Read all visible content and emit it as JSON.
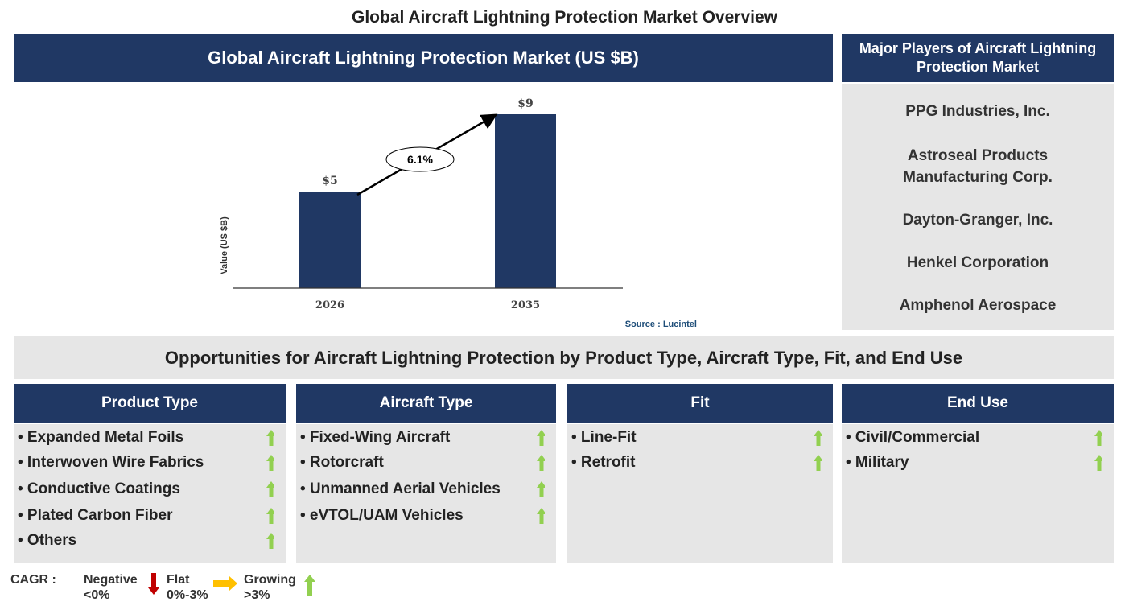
{
  "title": "Global Aircraft Lightning Protection Market Overview",
  "chart_panel": {
    "header": "Global Aircraft Lightning Protection Market (US $B)",
    "source": "Source : Lucintel"
  },
  "chart_data": {
    "type": "bar",
    "title": "Global Aircraft Lightning Protection Market (US $B)",
    "categories": [
      "2026",
      "2035"
    ],
    "values": [
      5,
      9
    ],
    "data_labels": [
      "$5",
      "$9"
    ],
    "ylabel": "Value (US $B)",
    "xlabel": "",
    "cagr_annotation": "6.1%",
    "bar_color": "#203864",
    "grid": false
  },
  "players": {
    "header": "Major Players of Aircraft Lightning Protection Market",
    "items": [
      "PPG Industries, Inc.",
      "Astroseal Products Manufacturing Corp.",
      "Dayton-Granger, Inc.",
      "Henkel Corporation",
      "Amphenol Aerospace"
    ]
  },
  "opportunities": {
    "header": "Opportunities for Aircraft Lightning Protection by Product Type, Aircraft Type, Fit, and End Use"
  },
  "segments": [
    {
      "title": "Product Type",
      "items": [
        "• Expanded Metal Foils",
        "• Interwoven Wire Fabrics",
        "• Conductive Coatings",
        "• Plated Carbon Fiber",
        "• Others"
      ],
      "trend": "growing"
    },
    {
      "title": "Aircraft Type",
      "items": [
        "• Fixed-Wing Aircraft",
        "• Rotorcraft",
        "• Unmanned Aerial Vehicles",
        "• eVTOL/UAM Vehicles"
      ],
      "trend": "growing"
    },
    {
      "title": "Fit",
      "items": [
        "• Line-Fit",
        "• Retrofit"
      ],
      "trend": "growing"
    },
    {
      "title": "End Use",
      "items": [
        "• Civil/Commercial",
        "• Military"
      ],
      "trend": "growing"
    }
  ],
  "legend": {
    "label": "CAGR  :",
    "negative": "Negative",
    "negative_range": "<0%",
    "flat": "Flat",
    "flat_range": "0%-3%",
    "growing": "Growing",
    "growing_range": ">3%",
    "colors": {
      "negative": "#c00000",
      "flat": "#ffc000",
      "growing": "#92d050"
    }
  }
}
